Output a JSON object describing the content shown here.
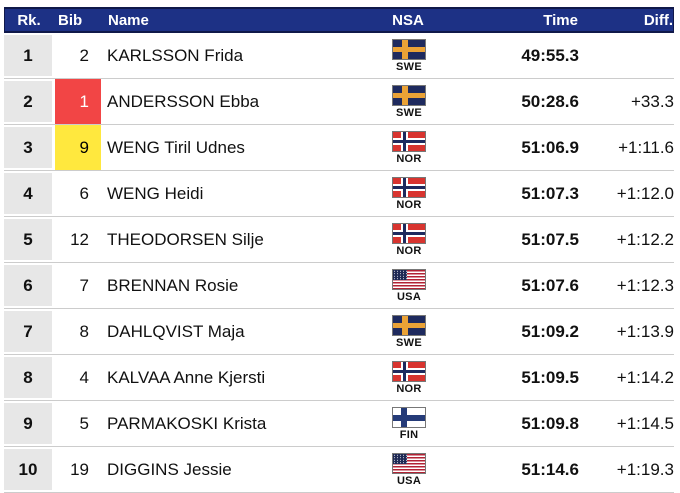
{
  "table": {
    "headers": {
      "rank": "Rk.",
      "bib": "Bib",
      "name": "Name",
      "nsa": "NSA",
      "time": "Time",
      "diff": "Diff."
    },
    "rows": [
      {
        "rank": "1",
        "bib": "2",
        "bib_color": "none",
        "name": "KARLSSON Frida",
        "nsa": "SWE",
        "time": "49:55.3",
        "diff": ""
      },
      {
        "rank": "2",
        "bib": "1",
        "bib_color": "red",
        "name": "ANDERSSON Ebba",
        "nsa": "SWE",
        "time": "50:28.6",
        "diff": "+33.3"
      },
      {
        "rank": "3",
        "bib": "9",
        "bib_color": "yellow",
        "name": "WENG Tiril Udnes",
        "nsa": "NOR",
        "time": "51:06.9",
        "diff": "+1:11.6"
      },
      {
        "rank": "4",
        "bib": "6",
        "bib_color": "none",
        "name": "WENG Heidi",
        "nsa": "NOR",
        "time": "51:07.3",
        "diff": "+1:12.0"
      },
      {
        "rank": "5",
        "bib": "12",
        "bib_color": "none",
        "name": "THEODORSEN Silje",
        "nsa": "NOR",
        "time": "51:07.5",
        "diff": "+1:12.2"
      },
      {
        "rank": "6",
        "bib": "7",
        "bib_color": "none",
        "name": "BRENNAN Rosie",
        "nsa": "USA",
        "time": "51:07.6",
        "diff": "+1:12.3"
      },
      {
        "rank": "7",
        "bib": "8",
        "bib_color": "none",
        "name": "DAHLQVIST Maja",
        "nsa": "SWE",
        "time": "51:09.2",
        "diff": "+1:13.9"
      },
      {
        "rank": "8",
        "bib": "4",
        "bib_color": "none",
        "name": "KALVAA Anne Kjersti",
        "nsa": "NOR",
        "time": "51:09.5",
        "diff": "+1:14.2"
      },
      {
        "rank": "9",
        "bib": "5",
        "bib_color": "none",
        "name": "PARMAKOSKI Krista",
        "nsa": "FIN",
        "time": "51:09.8",
        "diff": "+1:14.5"
      },
      {
        "rank": "10",
        "bib": "19",
        "bib_color": "none",
        "name": "DIGGINS Jessie",
        "nsa": "USA",
        "time": "51:14.6",
        "diff": "+1:19.3"
      }
    ],
    "colors": {
      "header_bg": "#1d3185",
      "header_border": "#10194a",
      "header_text": "#ffffff",
      "rank_cell_bg": "#e7e7e7",
      "row_divider": "#cccccc",
      "leader_bib_bg": "#f24545",
      "leader_bib_text": "#ffffff",
      "sprint_bib_bg": "#ffe83e",
      "sprint_bib_text": "#000000"
    }
  }
}
